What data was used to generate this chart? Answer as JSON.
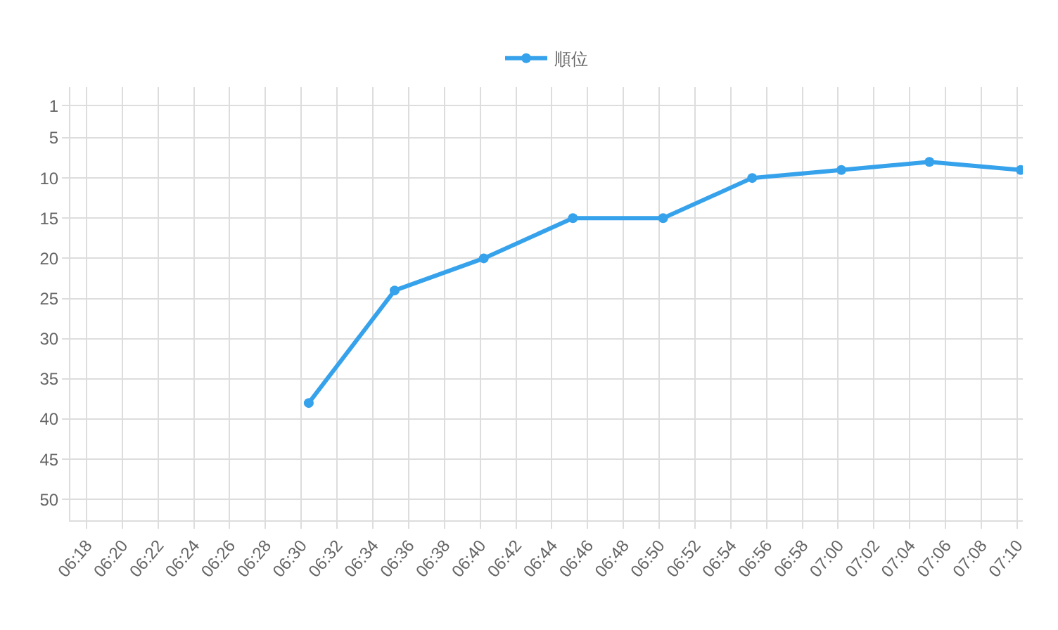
{
  "chart_data": {
    "type": "line",
    "x": [
      6.507,
      6.587,
      6.67,
      6.753,
      6.837,
      6.92,
      7.003,
      7.085,
      7.17
    ],
    "series": [
      {
        "name": "順位",
        "color": "#36a2eb",
        "values": [
          38,
          24,
          20,
          15,
          15,
          10,
          9,
          8,
          9
        ]
      }
    ],
    "xlim": [
      6.285,
      7.172
    ],
    "xticks": [
      {
        "value": 6.3,
        "label": "06:18"
      },
      {
        "value": 6.3333,
        "label": "06:20"
      },
      {
        "value": 6.3667,
        "label": "06:22"
      },
      {
        "value": 6.4,
        "label": "06:24"
      },
      {
        "value": 6.4333,
        "label": "06:26"
      },
      {
        "value": 6.4667,
        "label": "06:28"
      },
      {
        "value": 6.5,
        "label": "06:30"
      },
      {
        "value": 6.5333,
        "label": "06:32"
      },
      {
        "value": 6.5667,
        "label": "06:34"
      },
      {
        "value": 6.6,
        "label": "06:36"
      },
      {
        "value": 6.6333,
        "label": "06:38"
      },
      {
        "value": 6.6667,
        "label": "06:40"
      },
      {
        "value": 6.7,
        "label": "06:42"
      },
      {
        "value": 6.7333,
        "label": "06:44"
      },
      {
        "value": 6.7667,
        "label": "06:46"
      },
      {
        "value": 6.8,
        "label": "06:48"
      },
      {
        "value": 6.8333,
        "label": "06:50"
      },
      {
        "value": 6.8667,
        "label": "06:52"
      },
      {
        "value": 6.9,
        "label": "06:54"
      },
      {
        "value": 6.9333,
        "label": "06:56"
      },
      {
        "value": 6.9667,
        "label": "06:58"
      },
      {
        "value": 7.0,
        "label": "07:00"
      },
      {
        "value": 7.0333,
        "label": "07:02"
      },
      {
        "value": 7.0667,
        "label": "07:04"
      },
      {
        "value": 7.1,
        "label": "07:06"
      },
      {
        "value": 7.1333,
        "label": "07:08"
      },
      {
        "value": 7.1667,
        "label": "07:10"
      }
    ],
    "ylim": [
      52.6,
      -1.3
    ],
    "yticks": [
      1,
      5,
      10,
      15,
      20,
      25,
      30,
      35,
      40,
      45,
      50
    ],
    "grid": true,
    "legend": "top",
    "marker": "circle",
    "line_style": "solid"
  }
}
